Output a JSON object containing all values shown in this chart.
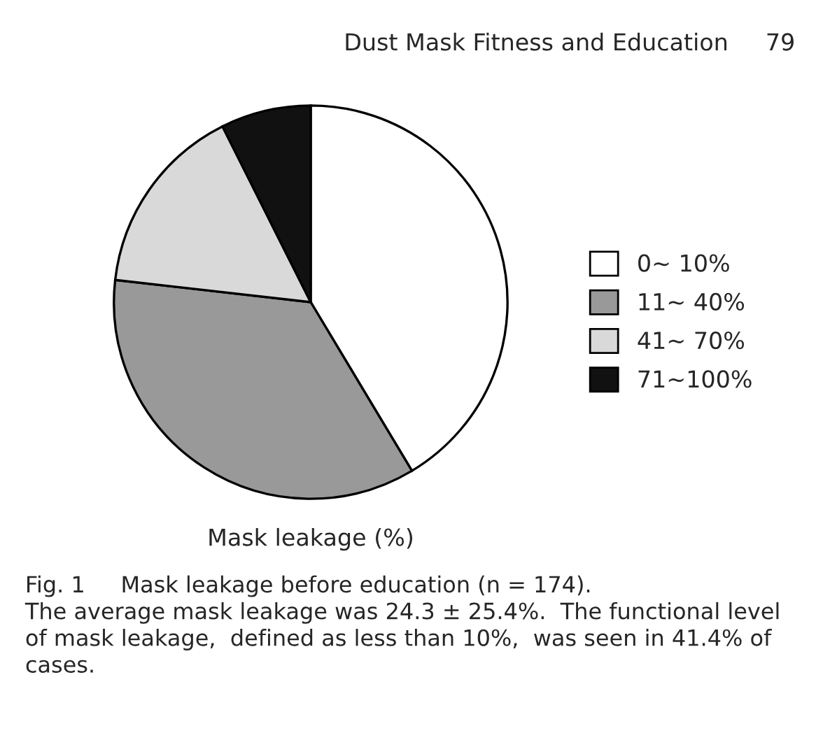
{
  "chart_data": {
    "type": "pie",
    "xlabel": "Mask leakage (%)",
    "categories": [
      "0∼ 10%",
      "11∼ 40%",
      "41∼ 70%",
      "71∼100%"
    ],
    "values": [
      41.4,
      35.4,
      15.8,
      7.4
    ],
    "colors": [
      "#ffffff",
      "#999999",
      "#d9d9d9",
      "#111111"
    ],
    "legend": "right",
    "annotations": [
      "Dust Mask Fitness and Education     79",
      "Fig. 1     Mask leakage before education (n = 174).\nThe average mask leakage was 24.3 ± 25.4%.  The functional level\nof mask leakage,  defined as less than 10%,  was seen in 41.4% of\ncases."
    ]
  }
}
